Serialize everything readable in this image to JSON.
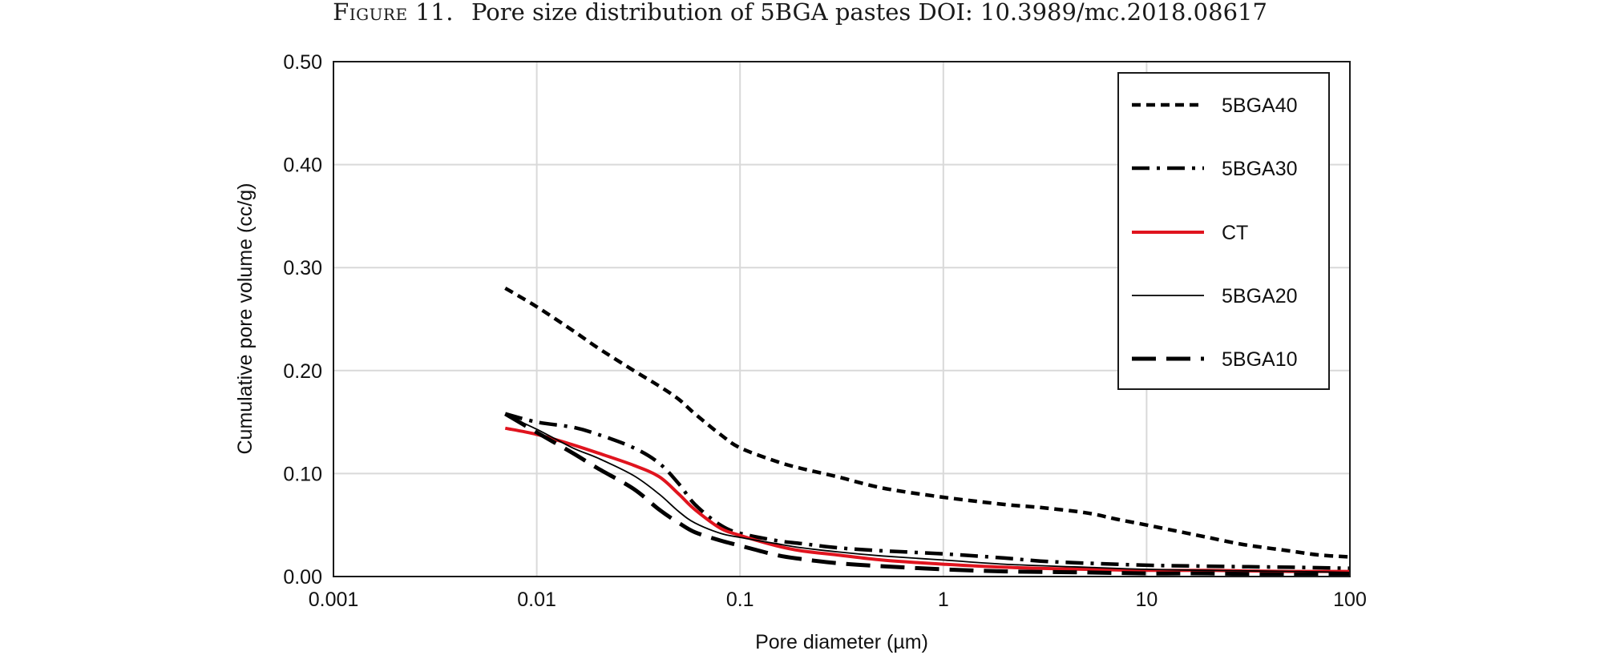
{
  "figure": {
    "label": "Figure 11.",
    "caption": "Pore size distribution of 5BGA pastes DOI: 10.3989/mc.2018.08617"
  },
  "chart_data": {
    "type": "line",
    "xlabel": "Pore diameter (µm)",
    "ylabel": "Cumulative pore volume (cc/g)",
    "xscale": "log",
    "xlim": [
      0.001,
      100
    ],
    "ylim": [
      0,
      0.5
    ],
    "x_ticks": [
      0.001,
      0.01,
      0.1,
      1,
      10,
      100
    ],
    "x_tick_labels": [
      "0.001",
      "0.01",
      "0.1",
      "1",
      "10",
      "100"
    ],
    "y_ticks": [
      0,
      0.1,
      0.2,
      0.3,
      0.4,
      0.5
    ],
    "y_tick_labels": [
      "0.00",
      "0.10",
      "0.20",
      "0.30",
      "0.40",
      "0.50"
    ],
    "grid": true,
    "legend_position": "top-right",
    "series": [
      {
        "name": "5BGA40",
        "color": "#000000",
        "style": "short-dash",
        "x": [
          0.007,
          0.01,
          0.015,
          0.02,
          0.03,
          0.04,
          0.05,
          0.06,
          0.08,
          0.1,
          0.15,
          0.2,
          0.3,
          0.5,
          1,
          2,
          3,
          5,
          7,
          10,
          15,
          20,
          30,
          50,
          70,
          100
        ],
        "y": [
          0.28,
          0.262,
          0.239,
          0.222,
          0.2,
          0.185,
          0.172,
          0.158,
          0.138,
          0.125,
          0.112,
          0.105,
          0.097,
          0.086,
          0.077,
          0.07,
          0.067,
          0.062,
          0.056,
          0.05,
          0.043,
          0.038,
          0.031,
          0.025,
          0.021,
          0.019
        ]
      },
      {
        "name": "5BGA30",
        "color": "#000000",
        "style": "dash-dot",
        "x": [
          0.007,
          0.01,
          0.015,
          0.02,
          0.03,
          0.04,
          0.05,
          0.06,
          0.08,
          0.1,
          0.15,
          0.2,
          0.3,
          0.5,
          1,
          2,
          3,
          5,
          10,
          20,
          50,
          100
        ],
        "y": [
          0.158,
          0.15,
          0.145,
          0.138,
          0.125,
          0.11,
          0.09,
          0.07,
          0.05,
          0.042,
          0.035,
          0.032,
          0.028,
          0.025,
          0.022,
          0.018,
          0.015,
          0.013,
          0.011,
          0.01,
          0.009,
          0.008
        ]
      },
      {
        "name": "CT",
        "color": "#e0141e",
        "style": "solid-thick",
        "x": [
          0.007,
          0.01,
          0.015,
          0.02,
          0.03,
          0.04,
          0.05,
          0.06,
          0.08,
          0.1,
          0.15,
          0.2,
          0.3,
          0.5,
          1,
          2,
          5,
          10,
          20,
          50,
          100
        ],
        "y": [
          0.144,
          0.138,
          0.128,
          0.12,
          0.108,
          0.097,
          0.08,
          0.065,
          0.047,
          0.04,
          0.03,
          0.025,
          0.021,
          0.016,
          0.012,
          0.009,
          0.007,
          0.006,
          0.006,
          0.005,
          0.005
        ]
      },
      {
        "name": "5BGA20",
        "color": "#000000",
        "style": "solid-thin",
        "x": [
          0.007,
          0.01,
          0.015,
          0.02,
          0.03,
          0.04,
          0.05,
          0.06,
          0.08,
          0.1,
          0.15,
          0.2,
          0.3,
          0.5,
          1,
          2,
          5,
          10,
          20,
          50,
          100
        ],
        "y": [
          0.157,
          0.143,
          0.125,
          0.115,
          0.098,
          0.08,
          0.063,
          0.052,
          0.042,
          0.038,
          0.032,
          0.028,
          0.024,
          0.02,
          0.016,
          0.012,
          0.009,
          0.007,
          0.006,
          0.005,
          0.004
        ]
      },
      {
        "name": "5BGA10",
        "color": "#000000",
        "style": "long-dash",
        "x": [
          0.007,
          0.01,
          0.015,
          0.02,
          0.03,
          0.04,
          0.05,
          0.06,
          0.08,
          0.1,
          0.15,
          0.2,
          0.3,
          0.5,
          1,
          2,
          5,
          10,
          20,
          50,
          100
        ],
        "y": [
          0.158,
          0.14,
          0.12,
          0.105,
          0.085,
          0.065,
          0.052,
          0.043,
          0.035,
          0.03,
          0.021,
          0.017,
          0.013,
          0.01,
          0.007,
          0.005,
          0.004,
          0.003,
          0.003,
          0.002,
          0.002
        ]
      }
    ]
  }
}
